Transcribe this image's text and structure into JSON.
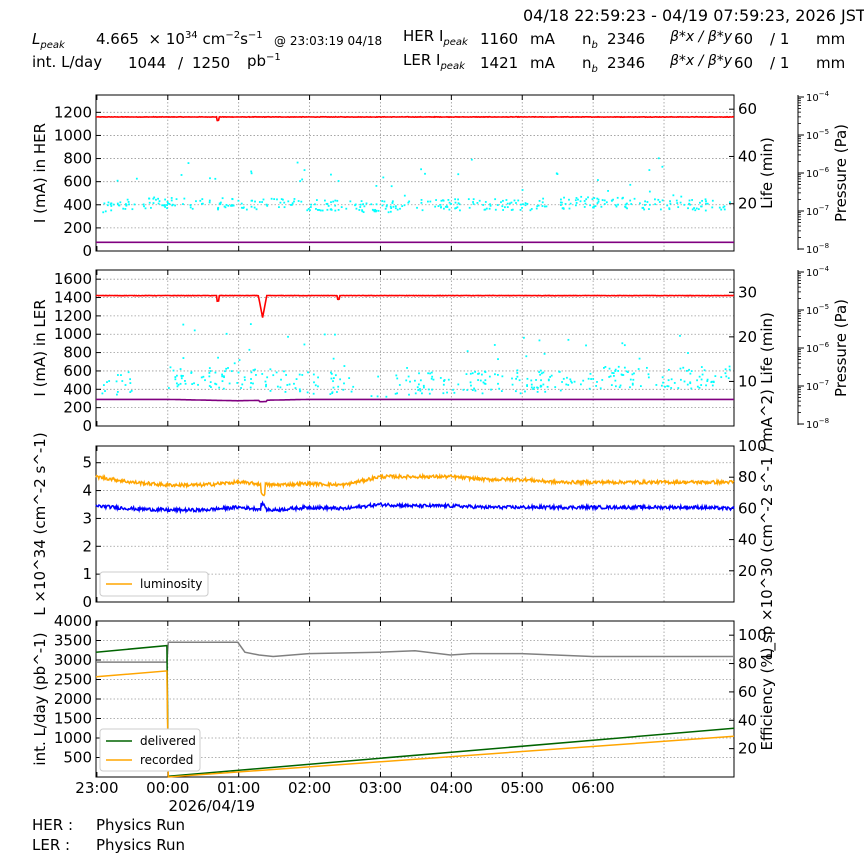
{
  "header": {
    "time_range": "04/18 22:59:23 - 04/19 07:59:23, 2026 JST",
    "row1": {
      "lum_label": "L",
      "lum_sub": "peak",
      "lum_value": "4.665",
      "lum_times": "× 10",
      "lum_exp": "34",
      "lum_unit": "cm",
      "lum_unit_exp1": "−2",
      "lum_unit_s": "s",
      "lum_unit_exp2": "−1",
      "lum_at": "@ 23:03:19 04/18",
      "ring": "HER I",
      "ring_sub": "peak",
      "current": "1160",
      "current_unit": "mA",
      "nb_label": "n",
      "nb_sub": "b",
      "nb_value": "2346",
      "beta_label": "β*x / β*y",
      "beta_x": "60",
      "beta_sep": "/ 1",
      "beta_unit": "mm"
    },
    "row2": {
      "int_label": "int. L/day",
      "int_value": "1044",
      "int_sep": "/",
      "int_total": "1250",
      "int_unit": "pb",
      "int_unit_exp": "−1",
      "ring": "LER I",
      "ring_sub": "peak",
      "current": "1421",
      "current_unit": "mA",
      "nb_label": "n",
      "nb_sub": "b",
      "nb_value": "2346",
      "beta_label": "β*x / β*y",
      "beta_x": "60",
      "beta_sep": "/ 1",
      "beta_unit": "mm"
    }
  },
  "footer": {
    "her_label": "HER :",
    "her_status": "Physics Run",
    "ler_label": "LER :",
    "ler_status": "Physics Run"
  },
  "colors": {
    "current": "#ff0000",
    "life": "#00ffff",
    "pressure": "#800080",
    "luminosity": "#ffa500",
    "specific_lum": "#0000ff",
    "delivered": "#006400",
    "recorded": "#ffa500",
    "efficiency": "#808080"
  },
  "chart_data": [
    {
      "type": "line",
      "panel": "HER",
      "ylabel": "I (mA) in HER",
      "ylim": [
        0,
        1350
      ],
      "yticks": [
        0,
        200,
        400,
        600,
        800,
        1000,
        1200
      ],
      "y2label": "Life (min)",
      "y2lim": [
        0,
        66
      ],
      "y2ticks": [
        20,
        40,
        60
      ],
      "y3label": "Pressure (Pa)",
      "y3ticks": [
        "10−8",
        "10−7",
        "10−6",
        "10−5",
        "10−4"
      ],
      "x_hours": [
        0,
        1,
        2,
        3,
        4,
        5,
        6,
        7,
        8,
        9
      ],
      "series": [
        {
          "role": "current",
          "values": [
            1160,
            1160,
            1158,
            1160,
            1160,
            1160,
            1160,
            1160,
            1160,
            1160
          ]
        },
        {
          "role": "life",
          "values": [
            19,
            21,
            20,
            20,
            19,
            20,
            20,
            21,
            20,
            20
          ]
        },
        {
          "role": "pressure",
          "values": [
            75,
            75,
            75,
            75,
            75,
            75,
            75,
            75,
            75,
            75
          ]
        }
      ]
    },
    {
      "type": "line",
      "panel": "LER",
      "ylabel": "I (mA) in LER",
      "ylim": [
        0,
        1700
      ],
      "yticks": [
        0,
        200,
        400,
        600,
        800,
        1000,
        1200,
        1400,
        1600
      ],
      "y2label": "Life (min)",
      "y2lim": [
        0,
        35
      ],
      "y2ticks": [
        10,
        20,
        30
      ],
      "y3label": "Pressure (Pa)",
      "y3ticks": [
        "10−8",
        "10−7",
        "10−6",
        "10−5",
        "10−4"
      ],
      "x_hours": [
        0,
        1,
        2,
        3,
        4,
        5,
        6,
        7,
        8,
        9
      ],
      "series": [
        {
          "role": "current",
          "values": [
            1421,
            1421,
            1180,
            1420,
            1421,
            1421,
            1421,
            1421,
            1421,
            1421
          ]
        },
        {
          "role": "life",
          "values": [
            9,
            11,
            11,
            10,
            9,
            10,
            10,
            11,
            11,
            11
          ]
        },
        {
          "role": "pressure",
          "values": [
            290,
            290,
            275,
            290,
            290,
            290,
            290,
            290,
            290,
            290
          ]
        }
      ]
    },
    {
      "type": "line",
      "panel": "Luminosity",
      "ylabel": "L ×10^34 (cm^-2 s^-1)",
      "ylim": [
        0,
        5.6
      ],
      "yticks": [
        0,
        1,
        2,
        3,
        4,
        5
      ],
      "y2label": "L_sp ×10^30 (cm^-2 s^-1 / mA^2)",
      "y2ticks": [
        20,
        40,
        60,
        80,
        100
      ],
      "legend": [
        "luminosity"
      ],
      "legend_position": "lower-left",
      "x_hours": [
        0,
        0.5,
        1,
        1.5,
        2,
        2.5,
        3,
        3.5,
        4,
        4.5,
        5,
        5.5,
        6,
        6.5,
        7,
        7.5,
        8,
        8.5,
        9
      ],
      "series": [
        {
          "name": "luminosity",
          "values": [
            4.5,
            4.3,
            4.2,
            4.2,
            4.3,
            4.2,
            4.25,
            4.2,
            4.5,
            4.5,
            4.5,
            4.4,
            4.4,
            4.3,
            4.3,
            4.3,
            4.3,
            4.3,
            4.3
          ]
        },
        {
          "role": "specific_lum",
          "values": [
            3.45,
            3.35,
            3.3,
            3.3,
            3.4,
            3.3,
            3.4,
            3.35,
            3.5,
            3.45,
            3.45,
            3.4,
            3.4,
            3.4,
            3.4,
            3.4,
            3.4,
            3.4,
            3.35
          ]
        }
      ]
    },
    {
      "type": "line",
      "panel": "Integrated",
      "ylabel": "int. L/day (pb^-1)",
      "ylim": [
        0,
        4000
      ],
      "yticks": [
        500,
        1000,
        1500,
        2000,
        2500,
        3000,
        3500,
        4000
      ],
      "y2label": "Efficiency (%)",
      "y2ticks": [
        20,
        40,
        60,
        80,
        100
      ],
      "x_tick_labels": [
        "23:00",
        "00:00",
        "01:00",
        "02:00",
        "03:00",
        "04:00",
        "05:00",
        "06:00",
        "07:00"
      ],
      "x_date_label": "2026/04/19",
      "legend": [
        "delivered",
        "recorded"
      ],
      "legend_position": "lower-left",
      "x_hours": [
        0,
        1.0,
        1.02,
        9
      ],
      "series": [
        {
          "name": "delivered",
          "values": [
            3200,
            3370,
            20,
            1250
          ]
        },
        {
          "name": "recorded",
          "values": [
            2570,
            2720,
            0,
            1044
          ]
        }
      ],
      "efficiency": {
        "x_hours": [
          0,
          1.0,
          1.02,
          2.0,
          2.1,
          2.3,
          2.5,
          3,
          4,
          4.5,
          5.0,
          5.3,
          6,
          7,
          8,
          9
        ],
        "values": [
          81,
          81,
          95,
          95,
          88,
          86,
          85,
          87,
          88,
          89,
          86,
          87,
          87,
          85,
          85,
          85
        ]
      }
    }
  ]
}
